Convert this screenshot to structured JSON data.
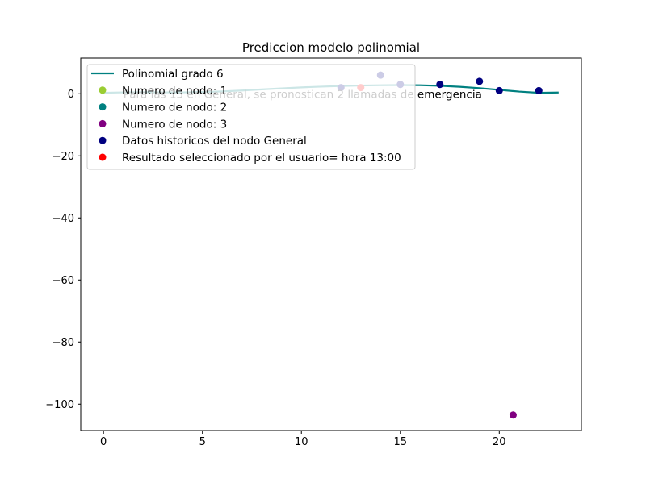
{
  "chart_data": {
    "type": "scatter",
    "title": "Prediccion modelo polinomial",
    "xlabel": "",
    "ylabel": "",
    "xlim": [
      -1.15,
      24.15
    ],
    "ylim": [
      -108.5,
      11.5
    ],
    "xticks": [
      0,
      5,
      10,
      15,
      20
    ],
    "yticks": [
      0,
      -20,
      -40,
      -60,
      -80,
      -100
    ],
    "grid": false,
    "legend_position": "upper-left",
    "colors": {
      "polynomial": "#008080",
      "node1": "#9acd32",
      "node2": "#008080",
      "node3": "#800080",
      "historic": "#000080",
      "selected": "#ff0000"
    },
    "polynomial": {
      "name": "Polinomial grado 6",
      "x": [
        0,
        1,
        2,
        3,
        4,
        5,
        6,
        7,
        8,
        9,
        10,
        11,
        12,
        13,
        14,
        15,
        16,
        17,
        18,
        19,
        20,
        21,
        22,
        23
      ],
      "y": [
        0.3,
        0.45,
        0.5,
        0.45,
        0.45,
        0.55,
        0.75,
        1.05,
        1.4,
        1.75,
        2.05,
        2.3,
        2.5,
        2.65,
        2.75,
        2.8,
        2.75,
        2.55,
        2.25,
        1.8,
        1.25,
        0.7,
        0.3,
        0.4
      ]
    },
    "series": [
      {
        "name": "Numero de nodo: 1",
        "points": []
      },
      {
        "name": "Numero de nodo: 2",
        "points": []
      },
      {
        "name": "Numero de nodo: 3",
        "points": [
          [
            20.7,
            -103.5
          ]
        ]
      },
      {
        "name": "Datos historicos del nodo General",
        "points": [
          [
            12,
            2
          ],
          [
            14,
            6
          ],
          [
            15,
            3
          ],
          [
            17,
            3
          ],
          [
            19,
            4
          ],
          [
            20,
            1
          ],
          [
            22,
            1
          ]
        ]
      },
      {
        "name": "Resultado seleccionado por el usuario= hora 13:00",
        "points": [
          [
            13,
            2
          ]
        ]
      }
    ],
    "annotation": {
      "text": "Para las 13 en General, se pronostican 2 llamadas de emergencia",
      "x": 1,
      "y": 0
    }
  }
}
